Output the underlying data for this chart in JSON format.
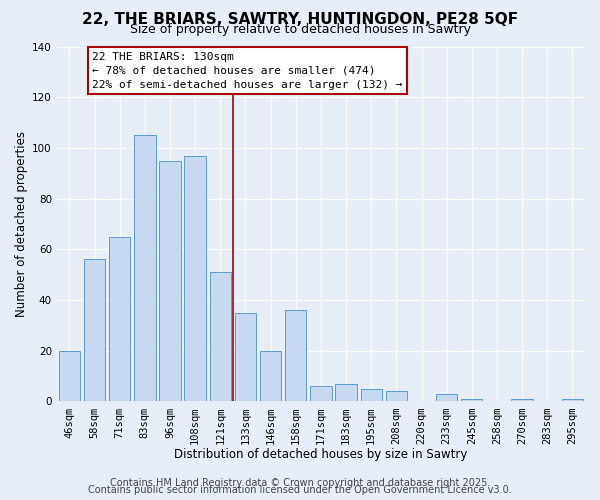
{
  "title": "22, THE BRIARS, SAWTRY, HUNTINGDON, PE28 5QF",
  "subtitle": "Size of property relative to detached houses in Sawtry",
  "xlabel": "Distribution of detached houses by size in Sawtry",
  "ylabel": "Number of detached properties",
  "categories": [
    "46sqm",
    "58sqm",
    "71sqm",
    "83sqm",
    "96sqm",
    "108sqm",
    "121sqm",
    "133sqm",
    "146sqm",
    "158sqm",
    "171sqm",
    "183sqm",
    "195sqm",
    "208sqm",
    "220sqm",
    "233sqm",
    "245sqm",
    "258sqm",
    "270sqm",
    "283sqm",
    "295sqm"
  ],
  "values": [
    20,
    56,
    65,
    105,
    95,
    97,
    51,
    35,
    20,
    36,
    6,
    7,
    5,
    4,
    0,
    3,
    1,
    0,
    1,
    0,
    1
  ],
  "bar_color": "#c6d9f1",
  "bar_edge_color": "#5b9bd5",
  "vline_index": 7,
  "vline_color": "#aa0000",
  "ylim": [
    0,
    140
  ],
  "yticks": [
    0,
    20,
    40,
    60,
    80,
    100,
    120,
    140
  ],
  "annotation_title": "22 THE BRIARS: 130sqm",
  "annotation_line1": "← 78% of detached houses are smaller (474)",
  "annotation_line2": "22% of semi-detached houses are larger (132) →",
  "annotation_box_facecolor": "#ffffff",
  "annotation_box_edgecolor": "#aa0000",
  "footer1": "Contains HM Land Registry data © Crown copyright and database right 2025.",
  "footer2": "Contains public sector information licensed under the Open Government Licence v3.0.",
  "background_color": "#e8eef8",
  "grid_color": "#ffffff",
  "title_fontsize": 11,
  "subtitle_fontsize": 9,
  "axis_label_fontsize": 8.5,
  "tick_fontsize": 7.5,
  "annotation_fontsize": 8,
  "footer_fontsize": 7
}
